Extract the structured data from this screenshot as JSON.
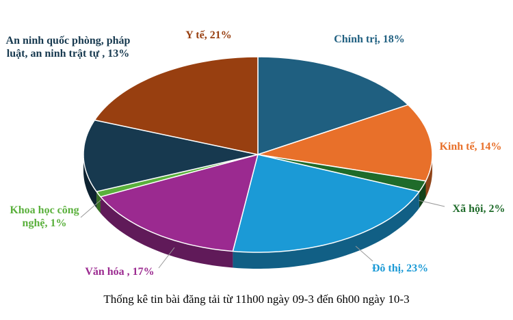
{
  "chart_data": {
    "type": "pie",
    "title": "Thống kê tin bài đăng tải từ 11h00 ngày 09-3 đến 6h00 ngày 10-3",
    "values": [
      18,
      14,
      2,
      23,
      17,
      1,
      13,
      21
    ],
    "value_labels": [
      "Chính trị, 18%",
      "Kinh tế, 14%",
      "Xã hội, 2%",
      "Đô thị, 23%",
      "Văn hóa , 17%",
      "Khoa học công nghệ, 1%",
      "An ninh quốc phòng, pháp luật, an ninh trật tự , 13%",
      "Y tế, 21%"
    ],
    "colors": [
      "#1f5f80",
      "#e8702a",
      "#1f6b2a",
      "#1b9ad6",
      "#9b2a90",
      "#5ab03c",
      "#17394f",
      "#983f10"
    ]
  }
}
